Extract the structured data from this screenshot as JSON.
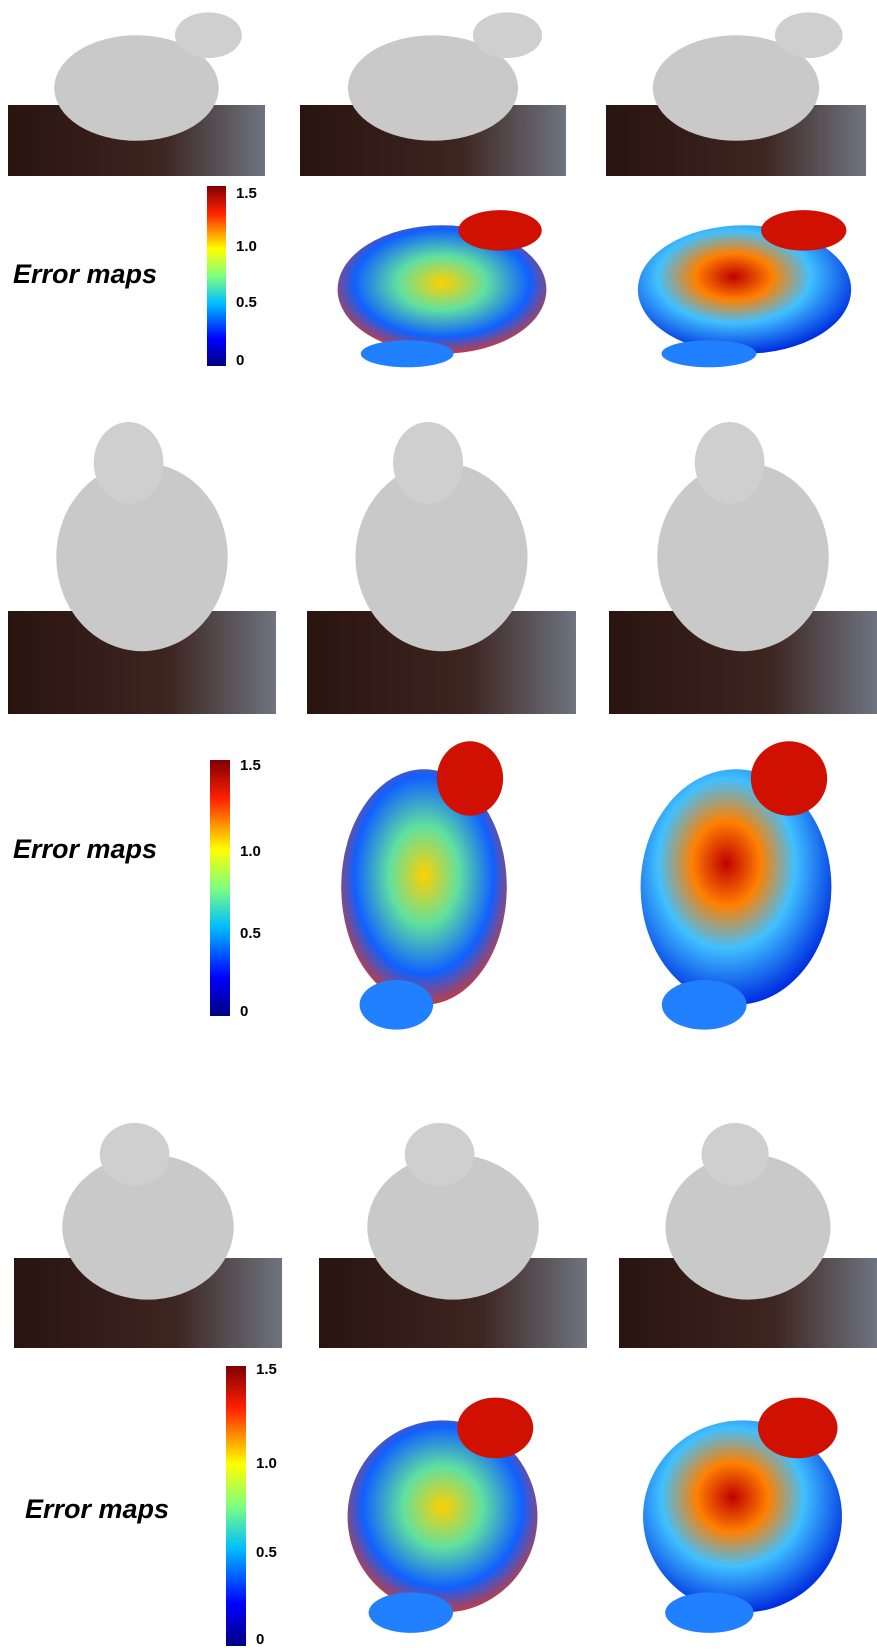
{
  "rows": [
    {
      "label": "Error maps",
      "colorbar": [
        "1.5",
        "1.0",
        "0.5",
        "0"
      ]
    },
    {
      "label": "Error maps",
      "colorbar": [
        "1.5",
        "1.0",
        "0.5",
        "0"
      ]
    },
    {
      "label": "Error maps",
      "colorbar": [
        "1.5",
        "1.0",
        "0.5",
        "0"
      ]
    }
  ]
}
